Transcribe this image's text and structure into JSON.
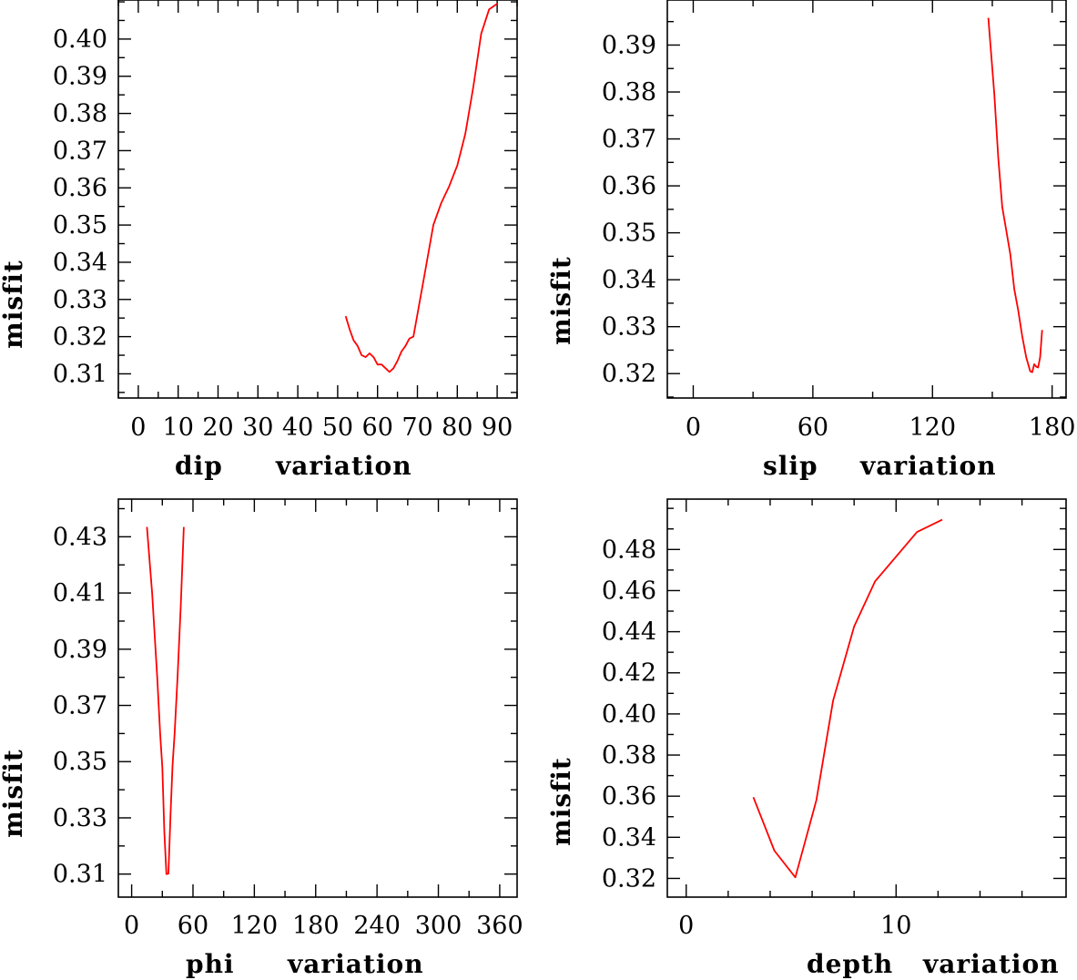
{
  "colors": {
    "frame": "#000000",
    "series": "#ff0000"
  },
  "chart_data": [
    {
      "type": "line",
      "title": "",
      "xlabel": "dip variation",
      "xlabel_parts": [
        "dip",
        "variation"
      ],
      "ylabel": "misfit",
      "xlim": [
        -5,
        95
      ],
      "ylim": [
        0.3035,
        0.4105
      ],
      "xticks": [
        0,
        10,
        20,
        30,
        40,
        50,
        60,
        70,
        80,
        90
      ],
      "xtick_labels": [
        "0",
        "10",
        "20",
        "30",
        "40",
        "50",
        "60",
        "70",
        "80",
        "90"
      ],
      "yticks": [
        0.31,
        0.32,
        0.33,
        0.34,
        0.35,
        0.36,
        0.37,
        0.38,
        0.39,
        0.4
      ],
      "ytick_labels": [
        "0.31",
        "0.32",
        "0.33",
        "0.34",
        "0.35",
        "0.36",
        "0.37",
        "0.38",
        "0.39",
        "0.40"
      ],
      "x_minor": 5,
      "y_minor": 0.005,
      "series": [
        {
          "x": [
            52,
            53,
            54,
            55,
            56,
            57,
            58,
            59,
            60,
            61,
            62,
            63,
            64,
            65,
            66,
            67,
            68,
            69,
            70,
            72,
            74,
            76,
            78,
            80,
            82,
            84,
            86,
            88,
            90
          ],
          "y": [
            0.3255,
            0.322,
            0.319,
            0.3175,
            0.315,
            0.3145,
            0.3155,
            0.3145,
            0.3125,
            0.3125,
            0.3115,
            0.3105,
            0.3115,
            0.3135,
            0.316,
            0.3175,
            0.3195,
            0.32,
            0.326,
            0.338,
            0.35,
            0.356,
            0.3605,
            0.366,
            0.3745,
            0.387,
            0.4015,
            0.408,
            0.4095
          ]
        }
      ]
    },
    {
      "type": "line",
      "title": "",
      "xlabel": "slip variation",
      "xlabel_parts": [
        "slip",
        "variation"
      ],
      "ylabel": "misfit",
      "xlim": [
        -13,
        187
      ],
      "ylim": [
        0.3148,
        0.3996
      ],
      "xticks": [
        0,
        60,
        120,
        180
      ],
      "xtick_labels": [
        "0",
        "60",
        "120",
        "180"
      ],
      "yticks": [
        0.32,
        0.33,
        0.34,
        0.35,
        0.36,
        0.37,
        0.38,
        0.39
      ],
      "ytick_labels": [
        "0.32",
        "0.33",
        "0.34",
        "0.35",
        "0.36",
        "0.37",
        "0.38",
        "0.39"
      ],
      "x_minor": 30,
      "y_minor": 0.005,
      "series": [
        {
          "x": [
            148,
            151,
            153,
            155,
            157,
            159,
            161,
            163,
            165,
            167,
            169,
            170,
            171,
            172,
            173,
            174,
            175
          ],
          "y": [
            0.3958,
            0.3795,
            0.366,
            0.3555,
            0.3505,
            0.3455,
            0.338,
            0.3335,
            0.328,
            0.3235,
            0.3205,
            0.3203,
            0.322,
            0.3215,
            0.3213,
            0.3235,
            0.3293
          ]
        }
      ]
    },
    {
      "type": "line",
      "title": "",
      "xlabel": "phi variation",
      "xlabel_parts": [
        "phi",
        "variation"
      ],
      "ylabel": "misfit",
      "xlim": [
        -13,
        377
      ],
      "ylim": [
        0.3018,
        0.4434
      ],
      "xticks": [
        0,
        60,
        120,
        180,
        240,
        300,
        360
      ],
      "xtick_labels": [
        "0",
        "60",
        "120",
        "180",
        "240",
        "300",
        "360"
      ],
      "yticks": [
        0.31,
        0.33,
        0.35,
        0.37,
        0.39,
        0.41,
        0.43
      ],
      "ytick_labels": [
        "0.31",
        "0.33",
        "0.35",
        "0.37",
        "0.39",
        "0.41",
        "0.43"
      ],
      "x_minor": 30,
      "y_minor": 0.01,
      "series": [
        {
          "x": [
            15,
            20,
            25,
            28,
            30,
            32,
            34,
            36,
            38,
            40,
            42,
            45,
            48,
            51
          ],
          "y": [
            0.4335,
            0.41,
            0.38,
            0.3595,
            0.348,
            0.325,
            0.31,
            0.3102,
            0.331,
            0.3485,
            0.36,
            0.3805,
            0.405,
            0.4335
          ]
        }
      ]
    },
    {
      "type": "line",
      "title": "",
      "xlabel": "depth variation",
      "xlabel_parts": [
        "depth",
        "variation"
      ],
      "ylabel": "misfit",
      "xlim": [
        -0.9,
        18.1
      ],
      "ylim": [
        0.3109,
        0.5045
      ],
      "xticks": [
        0,
        10
      ],
      "xtick_labels": [
        "0",
        "10"
      ],
      "x_minor_ticks": [
        2,
        4,
        6,
        8,
        12,
        14,
        16
      ],
      "yticks": [
        0.32,
        0.34,
        0.36,
        0.38,
        0.4,
        0.42,
        0.44,
        0.46,
        0.48
      ],
      "ytick_labels": [
        "0.32",
        "0.34",
        "0.36",
        "0.38",
        "0.40",
        "0.42",
        "0.44",
        "0.46",
        "0.48"
      ],
      "y_minor": 0.01,
      "series": [
        {
          "x": [
            3.2,
            4.2,
            5.2,
            6.2,
            7.0,
            8.0,
            9.0,
            11.0,
            12.2
          ],
          "y": [
            0.3595,
            0.3335,
            0.3205,
            0.358,
            0.4065,
            0.4425,
            0.4645,
            0.4885,
            0.4945
          ]
        }
      ]
    }
  ]
}
